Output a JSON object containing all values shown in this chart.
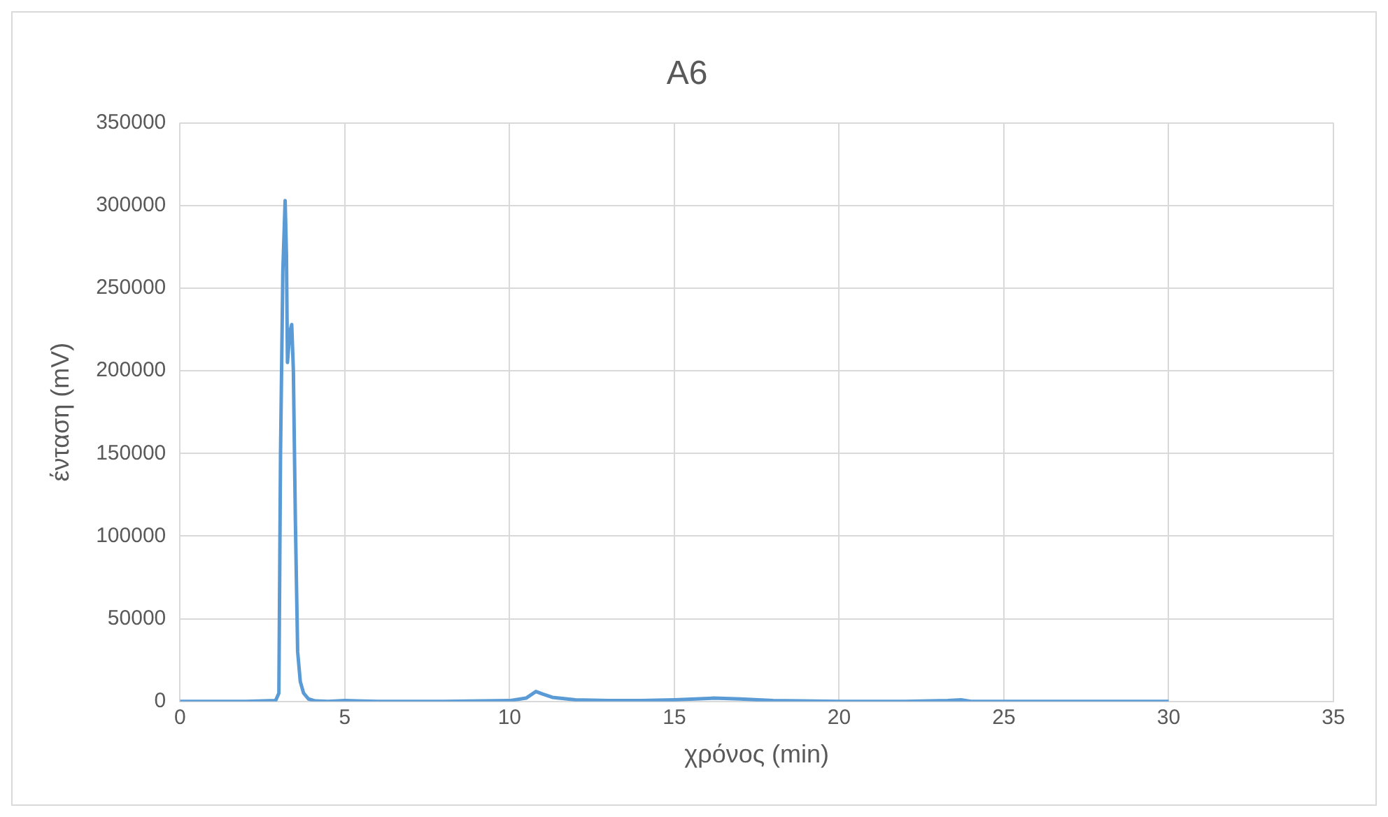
{
  "chart_data": {
    "type": "line",
    "title": "A6",
    "xlabel": "χρόνος (min)",
    "ylabel": "ένταση (mV)",
    "xlim": [
      0,
      35
    ],
    "xticks": [
      0,
      5,
      10,
      15,
      20,
      25,
      30,
      35
    ],
    "ylim": [
      0,
      350000
    ],
    "yticks": [
      0,
      50000,
      100000,
      150000,
      200000,
      250000,
      300000,
      350000
    ],
    "grid": true,
    "legend": false,
    "marker": "none",
    "line_style": "solid",
    "series": [
      {
        "color": "#5b9bd5",
        "x": [
          0,
          1,
          2,
          2.9,
          3.0,
          3.05,
          3.12,
          3.19,
          3.23,
          3.26,
          3.3,
          3.35,
          3.39,
          3.44,
          3.5,
          3.57,
          3.65,
          3.75,
          3.9,
          4.1,
          4.5,
          5,
          6,
          8,
          10,
          10.5,
          10.8,
          11,
          11.3,
          12,
          13,
          14,
          15,
          16.2,
          17,
          18,
          20,
          22,
          23.3,
          23.7,
          24,
          26,
          28,
          30
        ],
        "values": [
          0,
          0,
          0,
          500,
          5000,
          150000,
          260000,
          303000,
          270000,
          205000,
          215000,
          225000,
          228000,
          200000,
          110000,
          30000,
          12000,
          5000,
          1500,
          300,
          0,
          500,
          0,
          0,
          500,
          2000,
          6000,
          4500,
          2500,
          1000,
          500,
          500,
          1000,
          2000,
          1500,
          500,
          0,
          0,
          500,
          1000,
          0,
          0,
          0,
          0
        ]
      }
    ]
  }
}
